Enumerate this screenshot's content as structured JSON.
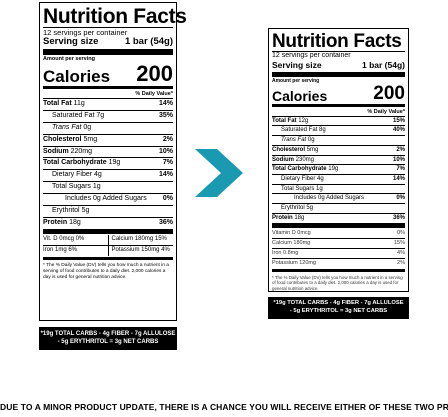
{
  "left": {
    "title": "Nutrition Facts",
    "servings": "12 servings per container",
    "serving_size_label": "Serving size",
    "serving_size_value": "1 bar (54g)",
    "amount_per_serving": "Amount per serving",
    "calories_label": "Calories",
    "calories_value": "200",
    "dv_header": "% Daily Value*",
    "nutrients": [
      {
        "name": "Total Fat",
        "amount": "11g",
        "dv": "14%"
      },
      {
        "name": "Saturated Fat",
        "amount": "7g",
        "dv": "35%"
      },
      {
        "name": "Trans Fat",
        "amount": "0g",
        "dv": ""
      },
      {
        "name": "Cholesterol",
        "amount": "5mg",
        "dv": "2%"
      },
      {
        "name": "Sodium",
        "amount": "220mg",
        "dv": "10%"
      },
      {
        "name": "Total Carbohydrate",
        "amount": "19g",
        "dv": "7%"
      },
      {
        "name": "Dietary Fiber",
        "amount": "4g",
        "dv": "14%"
      },
      {
        "name": "Total Sugars",
        "amount": "1g",
        "dv": ""
      },
      {
        "name": "Includes 0g Added Sugars",
        "amount": "",
        "dv": "0%"
      },
      {
        "name": "Erythritol",
        "amount": "5g",
        "dv": ""
      },
      {
        "name": "Protein",
        "amount": "18g",
        "dv": "36%"
      }
    ],
    "vitamins": [
      {
        "a": "Vit. D 0mcg 0%",
        "b": "Calcium 180mg 15%"
      },
      {
        "a": "Iron 1mg 6%",
        "b": "Potassium 150mg 4%"
      }
    ],
    "footnote": "* The % Daily Value (DV) tells you how much a nutrient in a serving of food contributes to a daily diet. 2,000 calories a day is used for general nutrition advice.",
    "carb_line1": "*19g TOTAL CARBS - 4g FIBER - 7g ALLULOSE",
    "carb_line2": "- 5g ERYTHRITOL = 3g NET CARBS"
  },
  "right": {
    "title": "Nutrition Facts",
    "servings": "12 servings per container",
    "serving_size_label": "Serving size",
    "serving_size_value": "1 bar (54g)",
    "amount_per_serving": "Amount per serving",
    "calories_label": "Calories",
    "calories_value": "200",
    "dv_header": "% Daily Value*",
    "nutrients": [
      {
        "name": "Total Fat",
        "amount": "12g",
        "dv": "15%"
      },
      {
        "name": "Saturated Fat",
        "amount": "8g",
        "dv": "40%"
      },
      {
        "name": "Trans Fat",
        "amount": "0g",
        "dv": ""
      },
      {
        "name": "Cholesterol",
        "amount": "5mg",
        "dv": "2%"
      },
      {
        "name": "Sodium",
        "amount": "230mg",
        "dv": "10%"
      },
      {
        "name": "Total Carbohydrate",
        "amount": "19g",
        "dv": "7%"
      },
      {
        "name": "Dietary Fiber",
        "amount": "4g",
        "dv": "14%"
      },
      {
        "name": "Total Sugars",
        "amount": "1g",
        "dv": ""
      },
      {
        "name": "Includes 0g Added Sugars",
        "amount": "",
        "dv": "0%"
      },
      {
        "name": "Erythritol",
        "amount": "5g",
        "dv": ""
      },
      {
        "name": "Protein",
        "amount": "18g",
        "dv": "36%"
      }
    ],
    "vitamins": [
      {
        "name": "Vitamin D",
        "amount": "0mcg",
        "dv": "0%"
      },
      {
        "name": "Calcium",
        "amount": "180mg",
        "dv": "15%"
      },
      {
        "name": "Iron",
        "amount": "0.8mg",
        "dv": "4%"
      },
      {
        "name": "Potassium",
        "amount": "120mg",
        "dv": "2%"
      }
    ],
    "footnote": "* The % Daily Value (DV) tells you how much a nutrient in a serving of food contributes to a daily diet. 2,000 calories a day is used for general nutrition advice.",
    "carb_line1": "*19g TOTAL CARBS - 4g FIBER - 7g ALLULOSE",
    "carb_line2": "- 5g ERYTHRITOL = 3g NET CARBS"
  },
  "arrow": {
    "icon": "arrow-right-icon",
    "color": "#1a9ab0"
  },
  "notice": "DUE TO A MINOR PRODUCT UPDATE, THERE IS A CHANCE YOU WILL RECEIVE EITHER OF THESE TWO PRODUCTS"
}
